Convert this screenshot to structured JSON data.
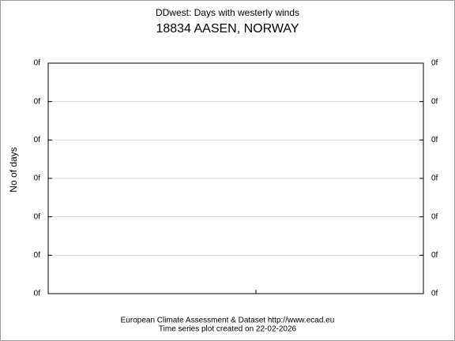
{
  "chart_data": {
    "type": "line",
    "title": "DDwest: Days with westerly winds",
    "subtitle": "18834 AASEN, NORWAY",
    "ylabel": "No of days",
    "footer": [
      "European Climate Assessment & Dataset  http://www.ecad.eu",
      "Time series plot created on 22-02-2026"
    ],
    "series": [],
    "ylim": [
      0,
      0.6
    ],
    "yticks": [
      {
        "value": 0,
        "label": "0f"
      },
      {
        "value": 0.1,
        "label": "0f"
      },
      {
        "value": 0.2,
        "label": "0f"
      },
      {
        "value": 0.3,
        "label": "0f"
      },
      {
        "value": 0.4,
        "label": "0f"
      },
      {
        "value": 0.5,
        "label": "0f"
      },
      {
        "value": 0.6,
        "label": "0f"
      }
    ],
    "y2lim": [
      0,
      0.6
    ],
    "y2ticks": [
      {
        "value": 0,
        "label": "0f"
      },
      {
        "value": 0.1,
        "label": "0f"
      },
      {
        "value": 0.2,
        "label": "0f"
      },
      {
        "value": 0.3,
        "label": "0f"
      },
      {
        "value": 0.4,
        "label": "0f"
      },
      {
        "value": 0.5,
        "label": "0f"
      },
      {
        "value": 0.6,
        "label": "0f"
      }
    ],
    "grid": true
  }
}
